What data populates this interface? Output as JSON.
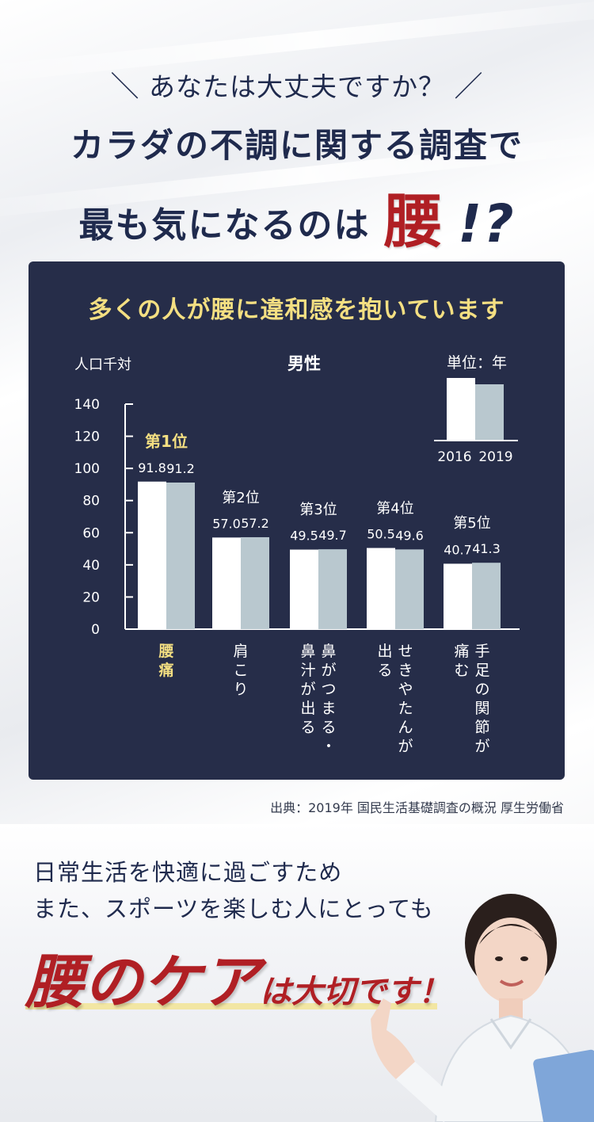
{
  "hero": {
    "catch": "あなたは大丈夫ですか？",
    "catch_left": "＼",
    "catch_right": "／",
    "title_line1": "カラダの不調に関する調査で",
    "title_line2": "最も気になるのは",
    "title_emphasis": "腰",
    "title_mark": "!?"
  },
  "panel": {
    "title": "多くの人が腰に違和感を抱いています"
  },
  "chart_data": {
    "type": "bar",
    "title": "男性",
    "ylabel": "人口千対",
    "unit_label": "単位：年",
    "ylim": [
      0,
      140
    ],
    "yticks": [
      0,
      20,
      40,
      60,
      80,
      100,
      120,
      140
    ],
    "rank_labels": [
      "第1位",
      "第2位",
      "第3位",
      "第4位",
      "第5位"
    ],
    "categories": [
      "腰痛",
      "肩こり",
      "鼻がつまる・鼻汁が出る",
      "せきやたんが出る",
      "手足の関節が痛む"
    ],
    "category_lines": [
      [
        "腰痛"
      ],
      [
        "肩こり"
      ],
      [
        "鼻がつまる・",
        "鼻汁が出る"
      ],
      [
        "せきやたんが",
        "出る"
      ],
      [
        "手足の関節が",
        "痛む"
      ]
    ],
    "series": [
      {
        "name": "2016",
        "values": [
          91.8,
          57.0,
          49.5,
          50.5,
          40.7
        ],
        "color": "#ffffff"
      },
      {
        "name": "2019",
        "values": [
          91.2,
          57.2,
          49.7,
          49.6,
          41.3
        ],
        "color": "#b9c8cf"
      }
    ],
    "value_labels": [
      [
        "91.8",
        "57.0",
        "49.5",
        "50.5",
        "40.7"
      ],
      [
        "91.2",
        "57.2",
        "49.7",
        "49.6",
        "41.3"
      ]
    ],
    "legend_placement": "top-right",
    "highlight_color": "#f4df82",
    "text_color": "#ffffff"
  },
  "source": "出典：2019年 国民生活基礎調査の概況 厚生労働省",
  "bottom": {
    "line1": "日常生活を快適に過ごすため",
    "line2": "また、スポーツを楽しむ人にとっても",
    "care_k1": "腰",
    "care_k2": "のケア",
    "care_k3": "は大切です！"
  }
}
